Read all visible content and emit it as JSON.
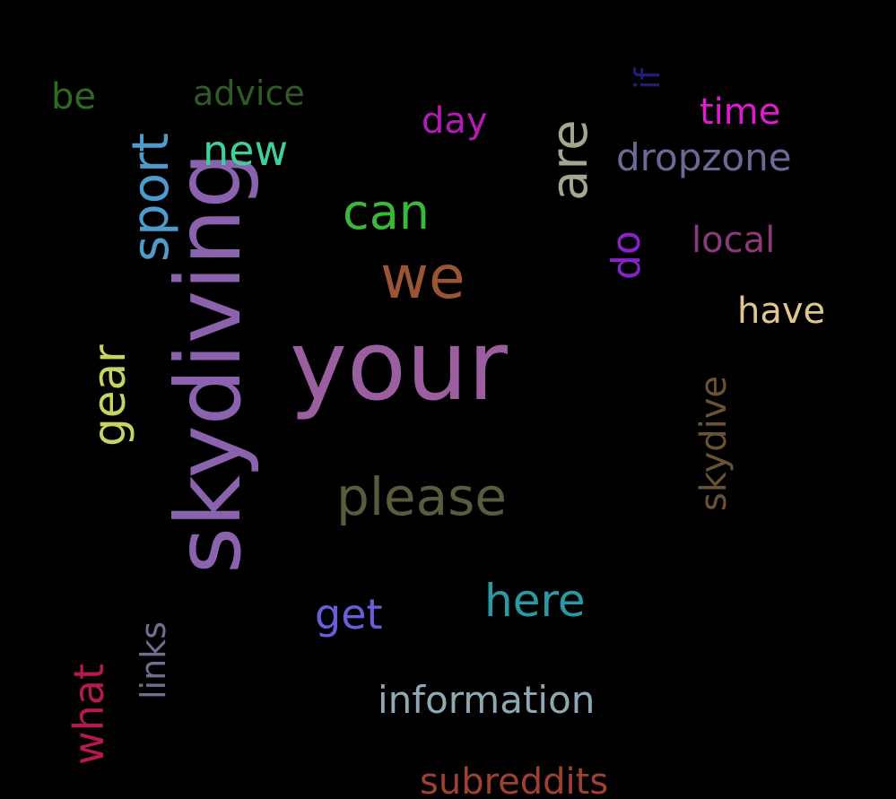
{
  "words": {
    "your": {
      "text": "your",
      "color": "#9b5fa0"
    },
    "skydiving": {
      "text": "skydiving",
      "color": "#8a62ad"
    },
    "please": {
      "text": "please",
      "color": "#5a5a3c"
    },
    "we": {
      "text": "we",
      "color": "#9a5634"
    },
    "can": {
      "text": "can",
      "color": "#3ab83a"
    },
    "are": {
      "text": "are",
      "color": "#a5a590"
    },
    "sport": {
      "text": "sport",
      "color": "#4f9ccc"
    },
    "here": {
      "text": "here",
      "color": "#2a9aa2"
    },
    "information": {
      "text": "information",
      "color": "#8fa8b4"
    },
    "subreddits": {
      "text": "subreddits",
      "color": "#a04030"
    },
    "get": {
      "text": "get",
      "color": "#6a5ed8"
    },
    "new": {
      "text": "new",
      "color": "#3fd099"
    },
    "advice": {
      "text": "advice",
      "color": "#2f5a26"
    },
    "be": {
      "text": "be",
      "color": "#2e6a24"
    },
    "day": {
      "text": "day",
      "color": "#b41ab4"
    },
    "time": {
      "text": "time",
      "color": "#e01ad2"
    },
    "dropzone": {
      "text": "dropzone",
      "color": "#6a6a96"
    },
    "local": {
      "text": "local",
      "color": "#8a3a78"
    },
    "have": {
      "text": "have",
      "color": "#e0c88c"
    },
    "gear": {
      "text": "gear",
      "color": "#c8d460"
    },
    "do": {
      "text": "do",
      "color": "#8a22cc"
    },
    "if": {
      "text": "if",
      "color": "#1e1e7a"
    },
    "skydive": {
      "text": "skydive",
      "color": "#6a5232"
    },
    "links": {
      "text": "links",
      "color": "#6e6e8e"
    },
    "what": {
      "text": "what",
      "color": "#b41a4e"
    }
  }
}
